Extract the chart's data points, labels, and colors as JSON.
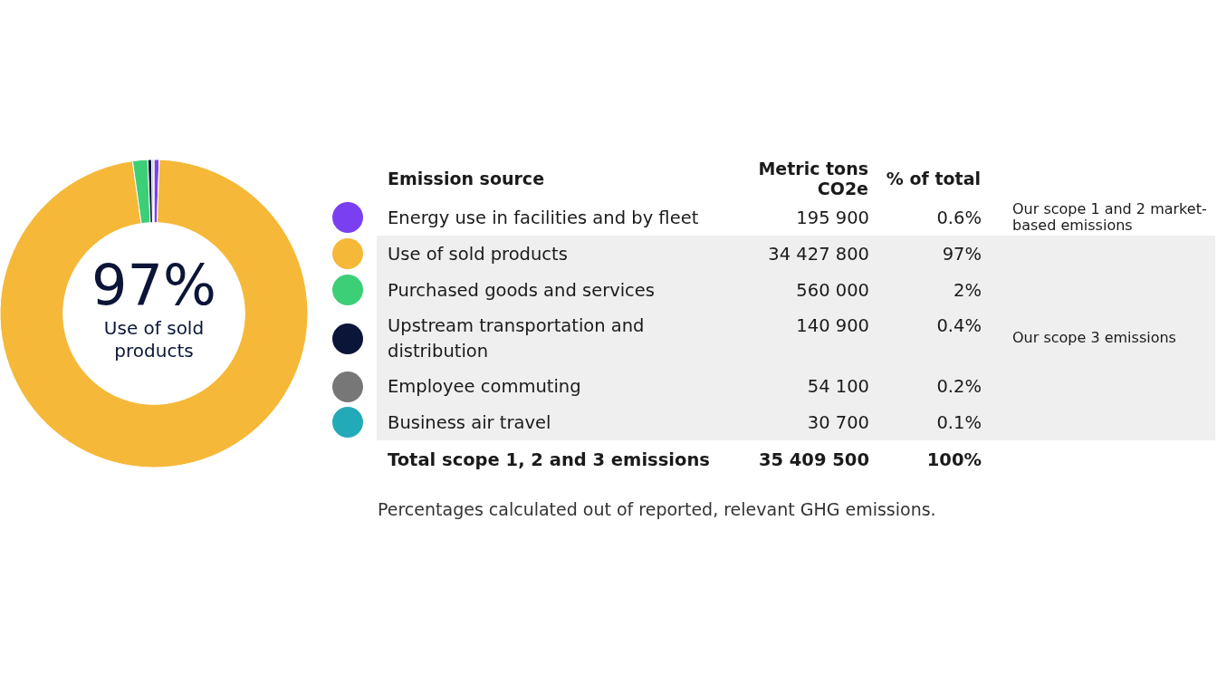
{
  "chart_data": {
    "type": "donut",
    "title": "97%",
    "subtitle": "Use of sold products",
    "legend_title": "Emission source",
    "legend": "right",
    "categories": [
      "Energy use in facilities and by fleet",
      "Use of sold products",
      "Purchased goods and services",
      "Upstream transportation and distribution",
      "Employee commuting",
      "Business air travel"
    ],
    "values": [
      195900,
      34427800,
      560000,
      140900,
      54100,
      30700
    ],
    "value_labels": [
      "195 900",
      "34 427 800",
      "560 000",
      "140 900",
      "54 100",
      "30 700"
    ],
    "colors": [
      "#7b3ff2",
      "#f6b838",
      "#3ccf78",
      "#0b1538",
      "#777777",
      "#22aab8"
    ],
    "annotations": [
      "Metric tons CO2e",
      "% of total",
      "0.6%",
      "97%",
      "2%",
      "0.4%",
      "0.2%",
      "0.1%",
      "Total scope 1, 2 and 3 emissions",
      "35 409 500",
      "100%",
      "Our scope 1 and 2 market-based emissions",
      "Our scope 3 emissions",
      "Percentages calculated out of reported, relevant GHG emissions."
    ]
  }
}
